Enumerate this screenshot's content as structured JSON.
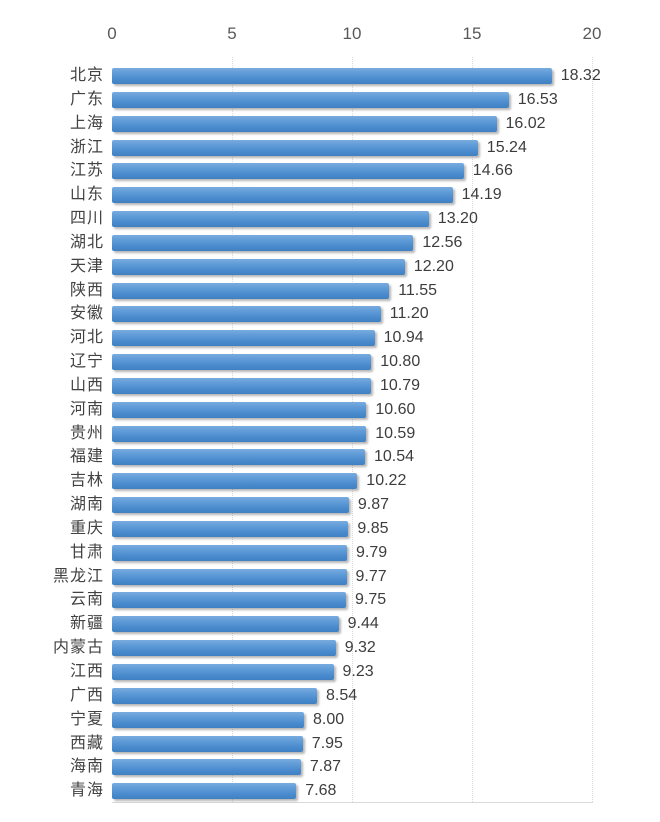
{
  "chart_data": {
    "type": "bar",
    "orientation": "horizontal",
    "title": "",
    "xlabel": "",
    "ylabel": "",
    "xlim": [
      0,
      20
    ],
    "x_ticks": [
      0,
      5,
      10,
      15,
      20
    ],
    "x_tick_labels": [
      "0",
      "5",
      "10",
      "15",
      "20"
    ],
    "grid": "vertical dotted gridlines at x ticks, light bottom axis line",
    "legend": "none",
    "categories": [
      "北京",
      "广东",
      "上海",
      "浙江",
      "江苏",
      "山东",
      "四川",
      "湖北",
      "天津",
      "陕西",
      "安徽",
      "河北",
      "辽宁",
      "山西",
      "河南",
      "贵州",
      "福建",
      "吉林",
      "湖南",
      "重庆",
      "甘肃",
      "黑龙江",
      "云南",
      "新疆",
      "内蒙古",
      "江西",
      "广西",
      "宁夏",
      "西藏",
      "海南",
      "青海"
    ],
    "values": [
      18.32,
      16.53,
      16.02,
      15.24,
      14.66,
      14.19,
      13.2,
      12.56,
      12.2,
      11.55,
      11.2,
      10.94,
      10.8,
      10.79,
      10.6,
      10.59,
      10.54,
      10.22,
      9.87,
      9.85,
      9.79,
      9.77,
      9.75,
      9.44,
      9.32,
      9.23,
      8.54,
      8.0,
      7.95,
      7.87,
      7.68
    ],
    "value_labels": [
      "18.32",
      "16.53",
      "16.02",
      "15.24",
      "14.66",
      "14.19",
      "13.20",
      "12.56",
      "12.20",
      "11.55",
      "11.20",
      "10.94",
      "10.80",
      "10.79",
      "10.60",
      "10.59",
      "10.54",
      "10.22",
      "9.87",
      "9.85",
      "9.79",
      "9.77",
      "9.75",
      "9.44",
      "9.32",
      "9.23",
      "8.54",
      "8.00",
      "7.95",
      "7.87",
      "7.68"
    ]
  },
  "colors": {
    "bar_top": "#79acdf",
    "bar_mid": "#4a8bce",
    "bar_bottom": "#3f80c2",
    "gridline": "#d9d9d9",
    "axis_text": "#595959",
    "category_text": "#424242",
    "value_text": "#3d3d3d",
    "background": "#ffffff"
  }
}
